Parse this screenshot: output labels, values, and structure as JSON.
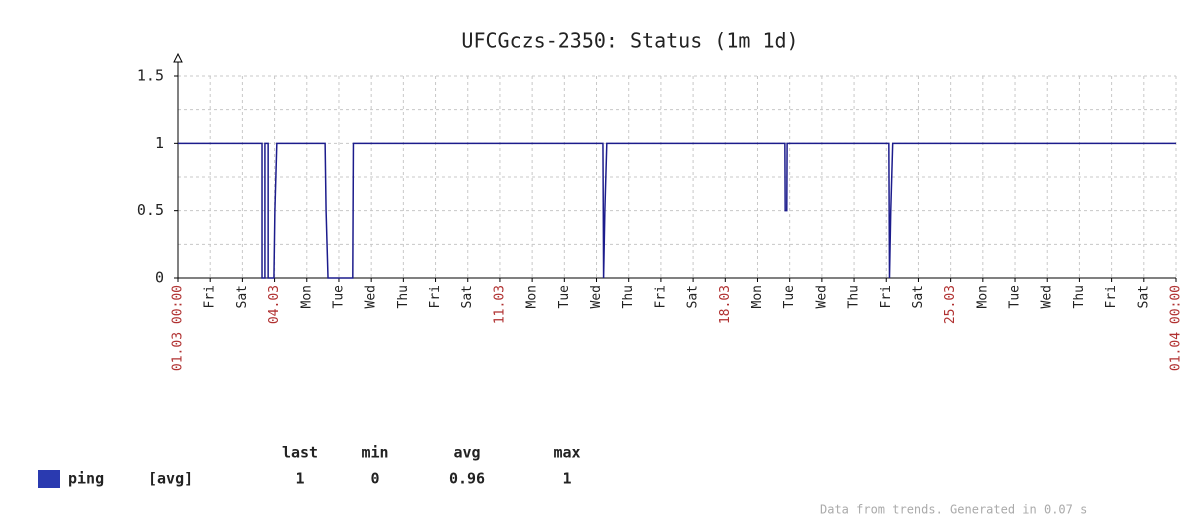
{
  "chart_data": {
    "type": "line",
    "title": "UFCGczs-2350: Status  (1m 1d)",
    "x": [
      0,
      2.61,
      2.61,
      2.7,
      2.7,
      2.8,
      2.8,
      2.98,
      3.01,
      3.07,
      4.57,
      4.6,
      4.66,
      5.43,
      5.45,
      13.2,
      13.22,
      13.26,
      13.32,
      18.85,
      18.86,
      18.91,
      18.92,
      22.08,
      22.1,
      22.14,
      22.2,
      31
    ],
    "series": [
      {
        "name": "ping",
        "color": "#1c1c8c",
        "swatch_color": "#2a3ab0",
        "values": [
          1,
          1,
          0,
          0,
          1,
          1,
          0,
          0,
          0.5,
          1,
          1,
          0.5,
          0,
          0,
          1,
          1,
          0,
          0.5,
          1,
          1,
          0.5,
          0.5,
          1,
          1,
          0,
          0.5,
          1,
          1
        ]
      }
    ],
    "legend_function": "[avg]",
    "stats_headers": [
      "last",
      "min",
      "avg",
      "max"
    ],
    "stats": [
      1,
      0,
      0.96,
      1
    ],
    "xlim": [
      0,
      31
    ],
    "xticks": [
      {
        "value": 0,
        "label": "01.03 00:00"
      },
      {
        "value": 1,
        "label": "Fri"
      },
      {
        "value": 2,
        "label": "Sat"
      },
      {
        "value": 3,
        "label": "04.03"
      },
      {
        "value": 4,
        "label": "Mon"
      },
      {
        "value": 5,
        "label": "Tue"
      },
      {
        "value": 6,
        "label": "Wed"
      },
      {
        "value": 7,
        "label": "Thu"
      },
      {
        "value": 8,
        "label": "Fri"
      },
      {
        "value": 9,
        "label": "Sat"
      },
      {
        "value": 10,
        "label": "11.03"
      },
      {
        "value": 11,
        "label": "Mon"
      },
      {
        "value": 12,
        "label": "Tue"
      },
      {
        "value": 13,
        "label": "Wed"
      },
      {
        "value": 14,
        "label": "Thu"
      },
      {
        "value": 15,
        "label": "Fri"
      },
      {
        "value": 16,
        "label": "Sat"
      },
      {
        "value": 17,
        "label": "18.03"
      },
      {
        "value": 18,
        "label": "Mon"
      },
      {
        "value": 19,
        "label": "Tue"
      },
      {
        "value": 20,
        "label": "Wed"
      },
      {
        "value": 21,
        "label": "Thu"
      },
      {
        "value": 22,
        "label": "Fri"
      },
      {
        "value": 23,
        "label": "Sat"
      },
      {
        "value": 24,
        "label": "25.03"
      },
      {
        "value": 25,
        "label": "Mon"
      },
      {
        "value": 26,
        "label": "Tue"
      },
      {
        "value": 27,
        "label": "Wed"
      },
      {
        "value": 28,
        "label": "Thu"
      },
      {
        "value": 29,
        "label": "Fri"
      },
      {
        "value": 30,
        "label": "Sat"
      },
      {
        "value": 31,
        "label": "01.04 00:00"
      }
    ],
    "ylim": [
      0,
      1.5
    ],
    "yticks": [
      0,
      0.5,
      1,
      1.5
    ],
    "yminor": [
      0.25,
      0.75,
      1.25
    ],
    "grid": true,
    "note": "Data from trends. Generated in 0.07 s"
  }
}
